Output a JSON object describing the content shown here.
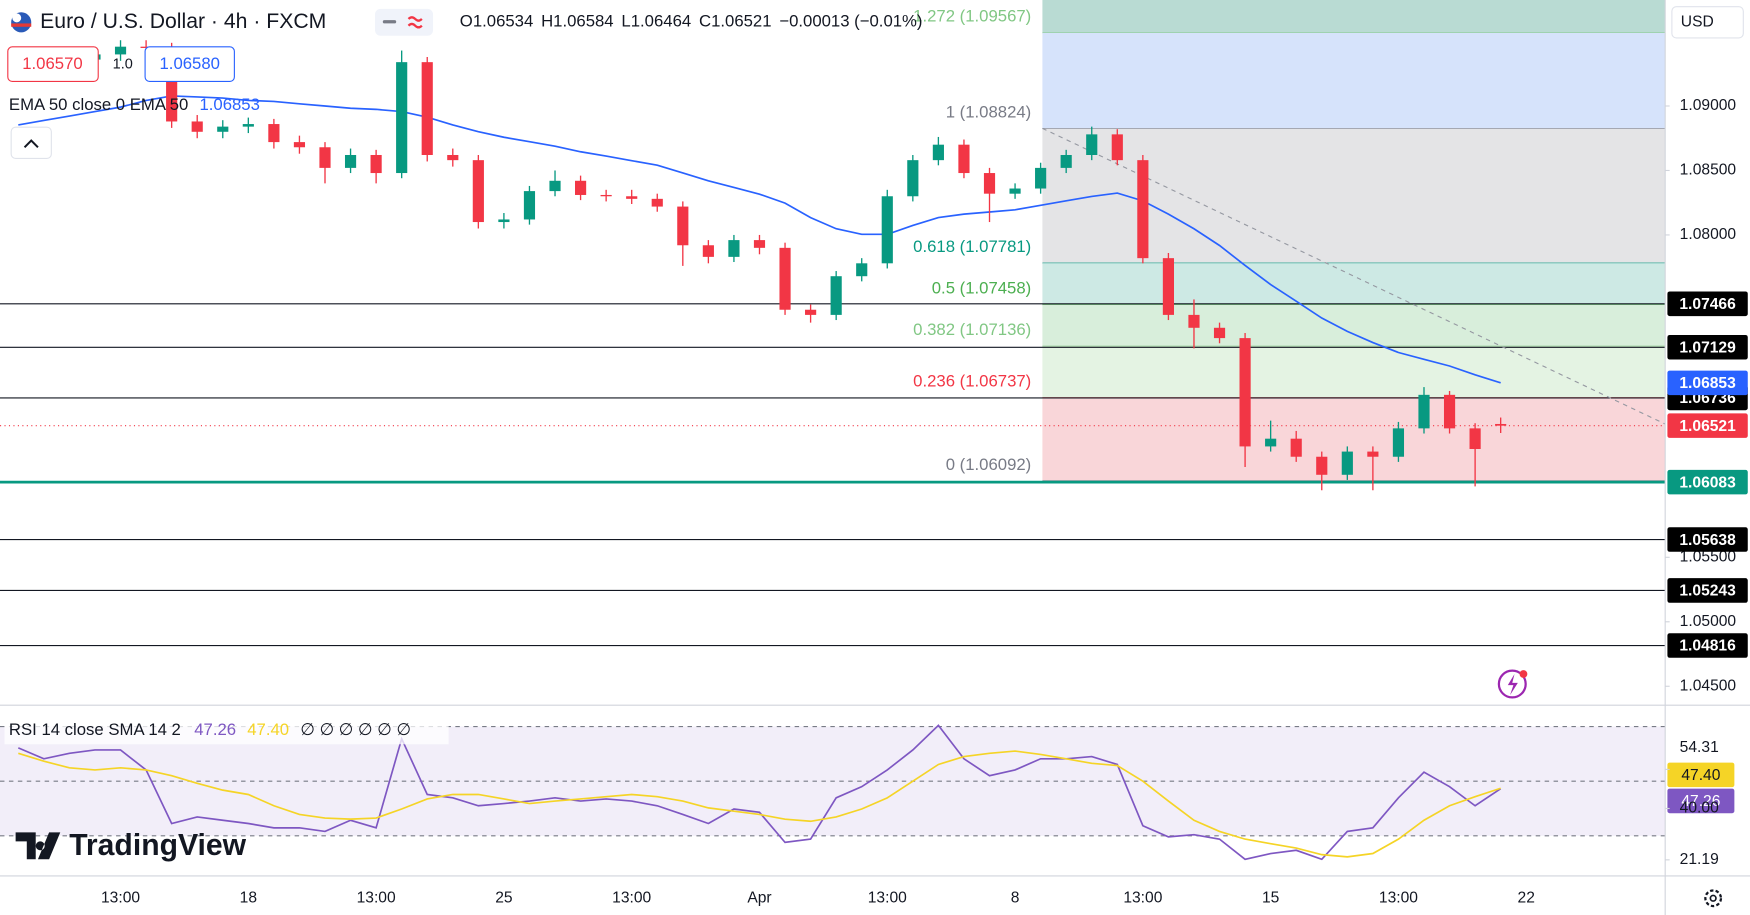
{
  "toolbar": {
    "sell": "1.06570",
    "spread": "1.0",
    "buy": "1.06580",
    "currency": "USD",
    "brand": "TradingView"
  },
  "chart_data": [
    {
      "type": "candlestick",
      "title": "Euro / U.S. Dollar · 4h · FXCM",
      "ohlc_letters": [
        "O",
        "H",
        "L",
        "C"
      ],
      "change": "−0.00013 (−0.01%)",
      "up_color": "#089981",
      "down_color": "#f23645",
      "categories": [
        null,
        null,
        null,
        null,
        "13:00",
        null,
        null,
        null,
        null,
        "18",
        null,
        null,
        null,
        null,
        "13:00",
        null,
        null,
        null,
        null,
        "25",
        null,
        null,
        null,
        null,
        "13:00",
        null,
        null,
        null,
        null,
        "Apr",
        null,
        null,
        null,
        null,
        "13:00",
        null,
        null,
        null,
        null,
        "8",
        null,
        null,
        null,
        null,
        "13:00",
        null,
        null,
        null,
        null,
        "15",
        null,
        null,
        null,
        null,
        "13:00",
        null,
        null,
        null,
        null,
        "22"
      ],
      "open": [
        1.0926,
        1.093,
        1.0932,
        1.0936,
        1.094,
        1.0946,
        1.0945,
        1.0888,
        1.088,
        1.0884,
        1.0886,
        1.0872,
        1.0868,
        1.0852,
        1.0862,
        1.0848,
        1.0934,
        1.0862,
        1.0858,
        1.081,
        1.0812,
        1.0834,
        1.0842,
        1.0831,
        1.083,
        1.0828,
        1.0822,
        1.0792,
        1.0783,
        1.0796,
        1.079,
        1.0742,
        1.0738,
        1.0768,
        1.0778,
        1.083,
        1.0858,
        1.087,
        1.0848,
        1.0832,
        1.0836,
        1.0852,
        1.0862,
        1.0878,
        1.0858,
        1.0782,
        1.0738,
        1.0728,
        1.072,
        1.0636,
        1.0642,
        1.0628,
        1.0614,
        1.0632,
        1.0628,
        1.065,
        1.0676,
        1.065,
        1.06534,
        null
      ],
      "high": [
        1.0935,
        1.0937,
        1.0941,
        1.0945,
        1.0951,
        1.0951,
        1.0949,
        1.0893,
        1.0889,
        1.0891,
        1.089,
        1.0877,
        1.0872,
        1.0867,
        1.0866,
        1.0943,
        1.0938,
        1.0867,
        1.0862,
        1.0817,
        1.0838,
        1.085,
        1.0846,
        1.0835,
        1.0835,
        1.0832,
        1.0826,
        1.0796,
        1.08,
        1.08,
        1.0794,
        1.0746,
        1.0772,
        1.0782,
        1.0835,
        1.0862,
        1.0876,
        1.0874,
        1.0852,
        1.084,
        1.0856,
        1.0866,
        1.0884,
        1.0882,
        1.0862,
        1.0786,
        1.075,
        1.0732,
        1.0724,
        1.0656,
        1.0648,
        1.0632,
        1.0636,
        1.0636,
        1.0655,
        1.0682,
        1.0679,
        1.0654,
        1.06584,
        null
      ],
      "low": [
        1.0921,
        1.0925,
        1.0927,
        1.0931,
        1.0935,
        1.094,
        1.0883,
        1.0875,
        1.0875,
        1.0879,
        1.0867,
        1.0863,
        1.084,
        1.0848,
        1.084,
        1.0844,
        1.0857,
        1.0853,
        1.0805,
        1.0805,
        1.0808,
        1.083,
        1.0827,
        1.0826,
        1.0824,
        1.0818,
        1.0776,
        1.0778,
        1.0779,
        1.0785,
        1.0738,
        1.0732,
        1.0734,
        1.0764,
        1.0774,
        1.0826,
        1.0854,
        1.0844,
        1.081,
        1.0828,
        1.0832,
        1.0848,
        1.0858,
        1.0854,
        1.0778,
        1.0734,
        1.0712,
        1.0716,
        1.062,
        1.0632,
        1.0624,
        1.0602,
        1.061,
        1.0602,
        1.0624,
        1.0646,
        1.0646,
        1.0605,
        1.06464,
        null
      ],
      "close": [
        1.093,
        1.0932,
        1.0936,
        1.094,
        1.0946,
        1.0945,
        1.0888,
        1.088,
        1.0884,
        1.0886,
        1.0872,
        1.0868,
        1.0852,
        1.0862,
        1.0848,
        1.0934,
        1.0862,
        1.0858,
        1.081,
        1.0812,
        1.0834,
        1.0842,
        1.0831,
        1.083,
        1.0828,
        1.0822,
        1.0792,
        1.0783,
        1.0796,
        1.079,
        1.0742,
        1.0738,
        1.0768,
        1.0778,
        1.083,
        1.0858,
        1.087,
        1.0848,
        1.0832,
        1.0836,
        1.0852,
        1.0862,
        1.0878,
        1.0858,
        1.0782,
        1.0738,
        1.0728,
        1.072,
        1.0636,
        1.0642,
        1.0628,
        1.0614,
        1.0632,
        1.0628,
        1.065,
        1.0676,
        1.065,
        1.0634,
        1.06521,
        null
      ],
      "ema": {
        "label": "EMA 50 close 0 EMA 50",
        "color": "#2962ff",
        "values": [
          1.08853,
          1.08888,
          1.08922,
          1.08957,
          1.08991,
          1.09043,
          1.09078,
          1.0907,
          1.09061,
          1.09043,
          1.09035,
          1.09017,
          1.09,
          1.08983,
          1.08974,
          1.08957,
          1.08913,
          1.08853,
          1.08801,
          1.08758,
          1.08723,
          1.08688,
          1.08645,
          1.08611,
          1.08576,
          1.08541,
          1.08481,
          1.0842,
          1.08368,
          1.08316,
          1.08247,
          1.08135,
          1.08048,
          1.08005,
          1.08005,
          1.08074,
          1.08135,
          1.08161,
          1.08178,
          1.08195,
          1.0823,
          1.08264,
          1.08299,
          1.08325,
          1.08264,
          1.08161,
          1.08048,
          1.07918,
          1.07763,
          1.07615,
          1.07486,
          1.07356,
          1.07252,
          1.07165,
          1.07088,
          1.07036,
          1.06984,
          1.06915,
          1.06853,
          null
        ]
      },
      "ylim": [
        1.04353,
        1.09822
      ],
      "yticks": [
        {
          "value": 1.045,
          "label": "1.04500"
        },
        {
          "value": 1.05,
          "label": "1.05000"
        },
        {
          "value": 1.055,
          "label": "1.05500"
        },
        {
          "value": 1.08,
          "label": "1.08000"
        },
        {
          "value": 1.085,
          "label": "1.08500"
        },
        {
          "value": 1.09,
          "label": "1.09000"
        }
      ],
      "hlines": [
        1.07466,
        1.07129,
        1.06736,
        1.06083,
        1.05638,
        1.05243,
        1.04816
      ],
      "hline_colors": [
        "#131722",
        "#131722",
        "#131722",
        "#089981",
        "#131722",
        "#131722",
        "#131722"
      ],
      "fib": {
        "levels": [
          1.09567,
          1.08824,
          1.07781,
          1.07458,
          1.07136,
          1.06737,
          1.06092
        ],
        "level_labels": [
          "1.272 (1.09567)",
          "1 (1.08824)",
          "0.618 (1.07781)",
          "0.5 (1.07458)",
          "0.382 (1.07136)",
          "0.236 (1.06737)",
          "0 (1.06092)"
        ],
        "label_colors": [
          "#81c784",
          "#787b86",
          "#089981",
          "#4caf50",
          "#81c784",
          "#f23645",
          "#787b86"
        ],
        "band_colors": [
          "#b9dbd3",
          "#d6e3fb",
          "#e4e4e6",
          "#cde9e4",
          "#d8eedb",
          "#e4f3e3",
          "#f9d6d9"
        ]
      }
    },
    {
      "type": "line",
      "title": "RSI 14 close SMA 14 2",
      "placeholders": "∅ ∅ ∅ ∅ ∅ ∅",
      "series": [
        {
          "color": "#7e57c2",
          "values": [
            62.2,
            58.2,
            60.2,
            61.4,
            61.4,
            54.1,
            34.5,
            36.9,
            35.7,
            34.5,
            32.9,
            32.9,
            31.6,
            35.7,
            32.9,
            65.5,
            45.1,
            43.9,
            41.0,
            41.8,
            42.7,
            43.9,
            42.7,
            43.5,
            42.7,
            41.0,
            37.8,
            34.5,
            39.8,
            38.6,
            27.6,
            28.8,
            43.9,
            48.0,
            54.1,
            61.4,
            70.4,
            58.2,
            52.0,
            54.1,
            58.2,
            58.2,
            59.0,
            56.1,
            33.7,
            29.6,
            30.4,
            28.8,
            21.4,
            23.5,
            24.7,
            21.4,
            31.6,
            32.9,
            43.9,
            53.3,
            48.0,
            41.0,
            47.26,
            null
          ]
        },
        {
          "color": "#f5d426",
          "value_label": "47.40",
          "values": [
            60.2,
            57.3,
            54.9,
            54.1,
            54.9,
            54.1,
            52.0,
            49.2,
            46.7,
            45.1,
            41.0,
            37.8,
            36.5,
            36.1,
            36.5,
            39.8,
            43.5,
            45.1,
            45.1,
            43.5,
            41.8,
            42.7,
            43.5,
            44.3,
            45.1,
            44.3,
            42.7,
            40.2,
            39.0,
            37.8,
            36.1,
            35.3,
            36.9,
            39.8,
            43.9,
            50.0,
            56.1,
            59.0,
            60.2,
            61.0,
            59.8,
            58.2,
            56.5,
            55.7,
            50.0,
            42.7,
            35.7,
            31.6,
            28.8,
            27.1,
            25.5,
            23.1,
            22.3,
            23.5,
            28.8,
            35.7,
            41.0,
            44.3,
            47.4,
            null
          ]
        }
      ],
      "ylim": [
        15.3,
        77.8
      ],
      "yticks": [
        54.31,
        {
          "value": 40,
          "label": "40.00"
        },
        21.19
      ],
      "bands": [
        70,
        50,
        30
      ],
      "band_fill": "#7e57c2"
    }
  ]
}
